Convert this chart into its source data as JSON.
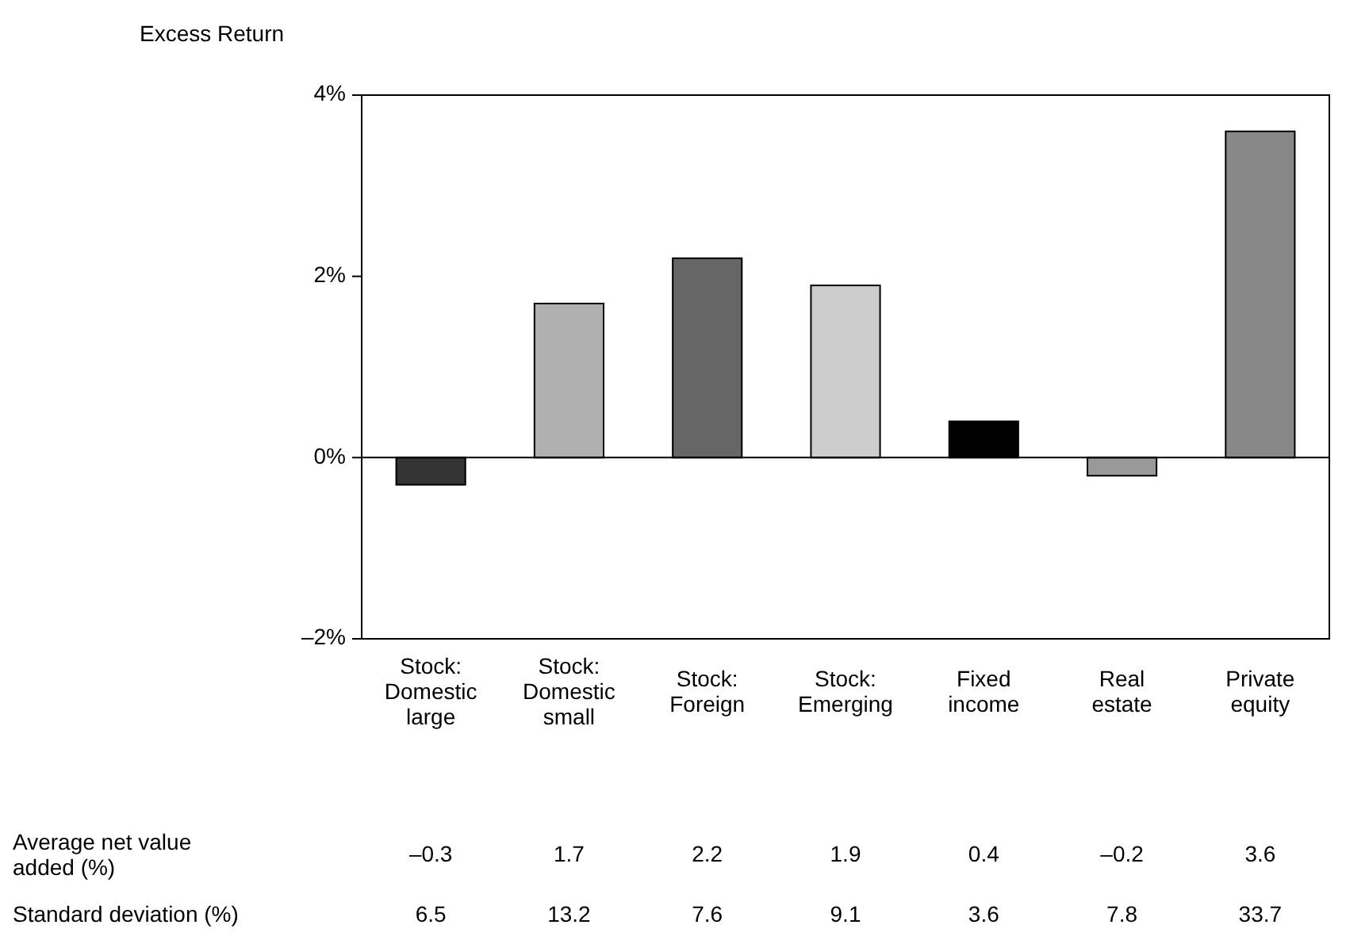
{
  "chart_data": {
    "type": "bar",
    "ylabel": "Excess Return",
    "categories": [
      "Stock: Domestic large",
      "Stock: Domestic small",
      "Stock: Foreign",
      "Stock: Emerging",
      "Fixed income",
      "Real estate",
      "Private equity"
    ],
    "series": [
      {
        "name": "Average net value added (%)",
        "colors": [
          "#333333",
          "#b0b0b0",
          "#666666",
          "#cccccc",
          "#000000",
          "#999999",
          "#888888"
        ],
        "values": [
          -0.3,
          1.7,
          2.2,
          1.9,
          0.4,
          -0.2,
          3.6
        ],
        "value_labels": [
          "–0.3",
          "1.7",
          "2.2",
          "1.9",
          "0.4",
          "–0.2",
          "3.6"
        ]
      }
    ],
    "ylim": [
      -2,
      4
    ],
    "yticks": [
      {
        "value": -2,
        "label": "–2%"
      },
      {
        "value": 0,
        "label": "0%"
      },
      {
        "value": 2,
        "label": "2%"
      },
      {
        "value": 4,
        "label": "4%"
      }
    ],
    "annotations": [
      "Standard deviation (%)",
      "6.5",
      "13.2",
      "7.6",
      "9.1",
      "3.6",
      "7.8",
      "33.7"
    ]
  }
}
